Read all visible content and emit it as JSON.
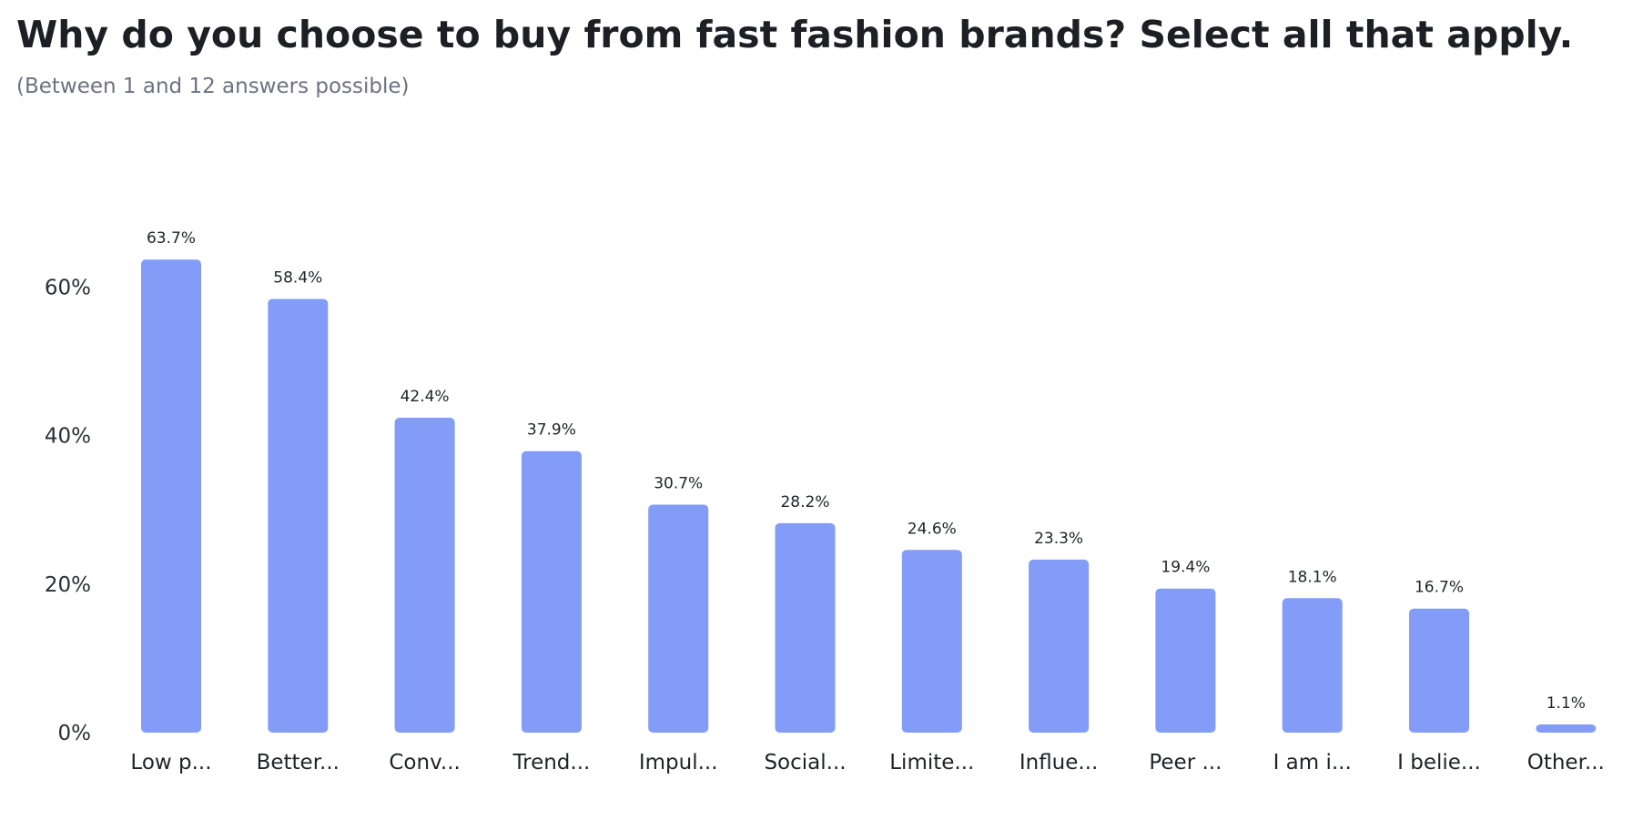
{
  "title": "Why do you choose to buy from fast fashion brands? Select all that apply.",
  "subtitle": "(Between 1 and 12 answers possible)",
  "chart_data": {
    "type": "bar",
    "categories": [
      "Low p...",
      "Better...",
      "Conv...",
      "Trend...",
      "Impul...",
      "Social...",
      "Limite...",
      "Influe...",
      "Peer ...",
      "I am i...",
      "I belie...",
      "Other..."
    ],
    "values": [
      63.7,
      58.4,
      42.4,
      37.9,
      30.7,
      28.2,
      24.6,
      23.3,
      19.4,
      18.1,
      16.7,
      1.1
    ],
    "data_labels": [
      "63.7%",
      "58.4%",
      "42.4%",
      "37.9%",
      "30.7%",
      "28.2%",
      "24.6%",
      "23.3%",
      "19.4%",
      "18.1%",
      "16.7%",
      "1.1%"
    ],
    "yticks": [
      0,
      20,
      40,
      60
    ],
    "ytick_labels": [
      "0%",
      "20%",
      "40%",
      "60%"
    ],
    "ylim": [
      0,
      60
    ],
    "grid": false,
    "legend": "none",
    "bar_color": "#829cf8"
  }
}
